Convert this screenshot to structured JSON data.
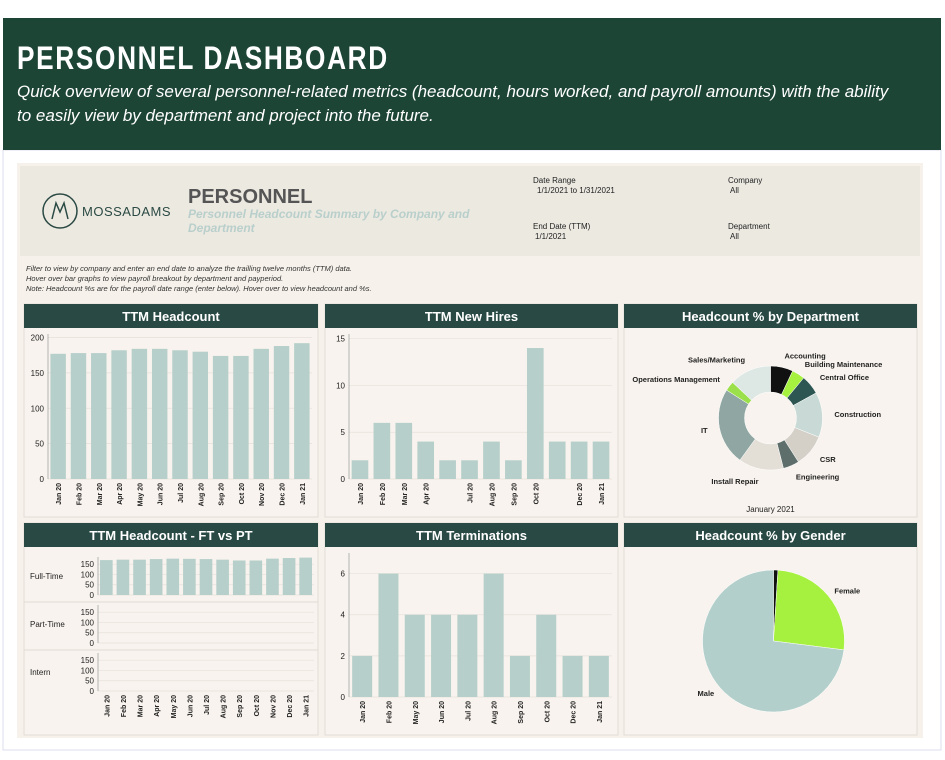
{
  "header": {
    "title": "PERSONNEL DASHBOARD",
    "subtitle": "Quick overview of several personnel-related metrics (headcount, hours worked, and payroll amounts) with the ability to easily view by department and project into the future."
  },
  "report": {
    "brand": "MOSSADAMS",
    "title": "PERSONNEL",
    "subtitle": "Personnel Headcount Summary by Company and Department",
    "filters": [
      {
        "label": "Date Range",
        "value": "1/1/2021 to 1/31/2021"
      },
      {
        "label": "Company",
        "value": "All"
      },
      {
        "label": "End Date (TTM)",
        "value": "1/1/2021"
      },
      {
        "label": "Department",
        "value": "All"
      }
    ],
    "notes": [
      "Filter to view by company and enter an end date to analyze the trailling twelve months (TTM) data.",
      "Hover over bar graphs to view payroll breakout by department and payperiod.",
      "Note: Headcount %s are for the payroll date range (enter below). Hover over to view headcount and %s."
    ]
  },
  "chart_data": [
    {
      "type": "bar",
      "title": "TTM Headcount",
      "color": "#b6cfca",
      "grid": true,
      "categories": [
        "Jan 20",
        "Feb 20",
        "Mar 20",
        "Apr 20",
        "May 20",
        "Jun 20",
        "Jul 20",
        "Aug 20",
        "Sep 20",
        "Oct 20",
        "Nov 20",
        "Dec 20",
        "Jan 21"
      ],
      "values": [
        177,
        178,
        178,
        182,
        184,
        184,
        182,
        180,
        174,
        174,
        184,
        188,
        192
      ],
      "ylim": [
        0,
        205
      ],
      "yticks": [
        0,
        50,
        100,
        150,
        200
      ]
    },
    {
      "type": "bar",
      "title": "TTM New Hires",
      "color": "#b6cfca",
      "grid": true,
      "categories": [
        "Jan 20",
        "Feb 20",
        "Mar 20",
        "Apr 20",
        null,
        "Jul 20",
        "Aug 20",
        "Sep 20",
        "Oct 20",
        null,
        "Dec 20",
        "Jan 21"
      ],
      "values": [
        2,
        6,
        6,
        4,
        2,
        2,
        4,
        2,
        14,
        4,
        4,
        4
      ],
      "ylim": [
        0,
        15.5
      ],
      "yticks": [
        0,
        5,
        10,
        15
      ]
    },
    {
      "type": "donut",
      "title": "Headcount % by Department",
      "subtitle": "January 2021",
      "categories": [
        "Accounting",
        "Building Maintenance",
        "Central Office",
        "Construction",
        "CSR",
        "Engineering",
        "Install Repair",
        "IT",
        "Operations Management",
        "Sales/Marketing"
      ],
      "values": [
        7,
        4,
        6,
        14,
        10,
        5,
        14,
        24,
        3,
        13
      ],
      "colors": [
        "#111111",
        "#a6f03f",
        "#2d5551",
        "#c9dad6",
        "#d4d0c8",
        "#5d6e6b",
        "#e3ded6",
        "#8fa6a2",
        "#9be04a",
        "#dde7e4"
      ]
    },
    {
      "type": "bar",
      "title": "TTM Headcount - FT vs PT",
      "color": "#b6cfca",
      "grid": true,
      "categories": [
        "Jan 20",
        "Feb 20",
        "Mar 20",
        "Apr 20",
        "May 20",
        "Jun 20",
        "Jul 20",
        "Aug 20",
        "Sep 20",
        "Oct 20",
        "Nov 20",
        "Dec 20",
        "Jan 21"
      ],
      "series": [
        {
          "name": "Full-Time",
          "values": [
            170,
            172,
            172,
            175,
            177,
            176,
            175,
            172,
            168,
            168,
            177,
            180,
            182
          ]
        },
        {
          "name": "Part-Time",
          "values": [
            0,
            0,
            0,
            0,
            0,
            0,
            0,
            0,
            0,
            0,
            0,
            0,
            0
          ]
        },
        {
          "name": "Intern",
          "values": [
            0,
            0,
            0,
            0,
            0,
            0,
            0,
            0,
            0,
            0,
            0,
            0,
            0
          ]
        }
      ],
      "ylim": [
        0,
        185
      ],
      "yticks": [
        0,
        50,
        100,
        150
      ]
    },
    {
      "type": "bar",
      "title": "TTM Terminations",
      "color": "#b6cfca",
      "grid": true,
      "categories": [
        "Jan 20",
        "Feb 20",
        "May 20",
        "Jun 20",
        "Jul 20",
        "Aug 20",
        "Sep 20",
        "Oct 20",
        "Dec 20",
        "Jan 21"
      ],
      "values": [
        2,
        6,
        4,
        4,
        4,
        6,
        2,
        4,
        2,
        2
      ],
      "ylim": [
        0,
        7
      ],
      "yticks": [
        0,
        2,
        4,
        6
      ]
    },
    {
      "type": "pie",
      "title": "Headcount % by Gender",
      "categories": [
        null,
        "Female",
        "Male"
      ],
      "values": [
        1,
        26,
        73
      ],
      "colors": [
        "#111111",
        "#a6f03f",
        "#b3cfcb"
      ]
    }
  ]
}
